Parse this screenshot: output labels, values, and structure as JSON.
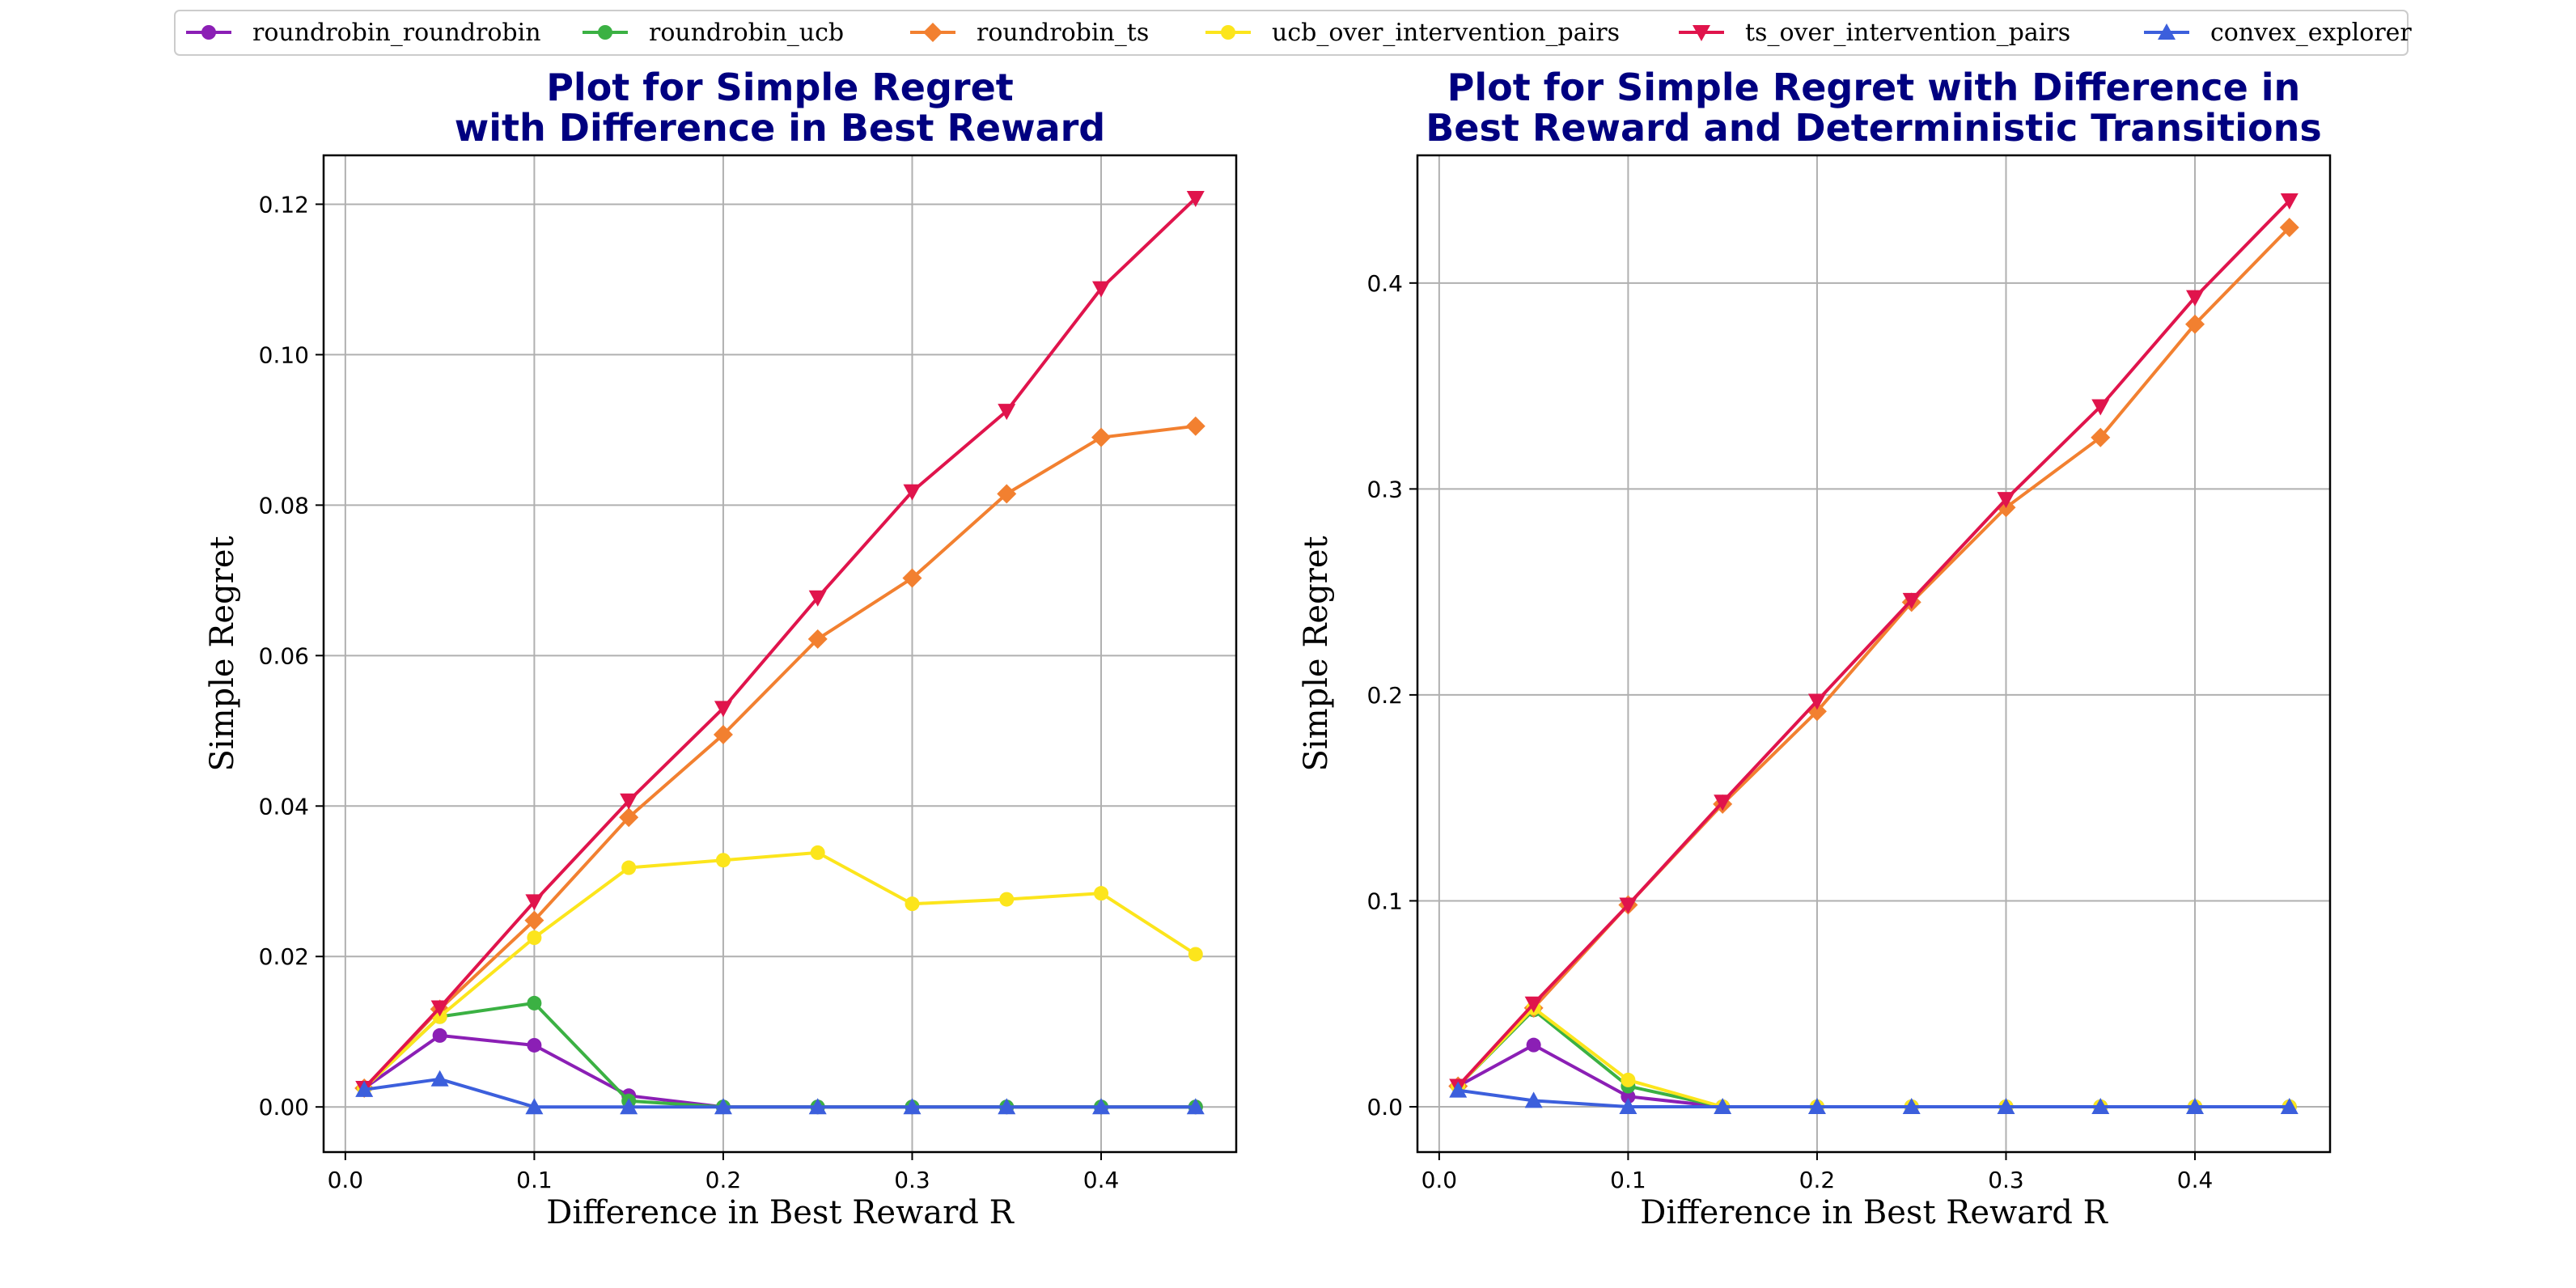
{
  "colors": {
    "title": "#000080",
    "grid": "#b0b0b0",
    "axis": "#000000"
  },
  "legend": {
    "placement": "top-center",
    "items": [
      {
        "name": "roundrobin_roundrobin",
        "color": "#8b1fb5",
        "marker": "circle"
      },
      {
        "name": "roundrobin_ucb",
        "color": "#3bb143",
        "marker": "circle"
      },
      {
        "name": "roundrobin_ts",
        "color": "#f28030",
        "marker": "diamond"
      },
      {
        "name": "ucb_over_intervention_pairs",
        "color": "#fce51c",
        "marker": "circle"
      },
      {
        "name": "ts_over_intervention_pairs",
        "color": "#e0144c",
        "marker": "triangle-down"
      },
      {
        "name": "convex_explorer",
        "color": "#3c5fdc",
        "marker": "triangle-up"
      }
    ]
  },
  "chart_data": [
    {
      "type": "line",
      "title_lines": [
        "Plot for Simple Regret",
        "with Difference in Best Reward"
      ],
      "xlabel": "Difference in Best Reward R",
      "ylabel": "Simple Regret",
      "xlim": [
        -0.0115,
        0.4715
      ],
      "ylim": [
        -0.006,
        0.1265
      ],
      "xticks": [
        0.0,
        0.1,
        0.2,
        0.3,
        0.4
      ],
      "xtick_labels": [
        "0.0",
        "0.1",
        "0.2",
        "0.3",
        "0.4"
      ],
      "yticks": [
        0.0,
        0.02,
        0.04,
        0.06,
        0.08,
        0.1,
        0.12
      ],
      "ytick_labels": [
        "0.00",
        "0.02",
        "0.04",
        "0.06",
        "0.08",
        "0.10",
        "0.12"
      ],
      "grid": true,
      "x": [
        0.01,
        0.05,
        0.1,
        0.15,
        0.2,
        0.25,
        0.3,
        0.35,
        0.4,
        0.45
      ],
      "series": [
        {
          "name": "roundrobin_roundrobin",
          "values": [
            0.0025,
            0.0095,
            0.0082,
            0.0015,
            0.0,
            0.0,
            0.0,
            0.0,
            0.0,
            0.0
          ]
        },
        {
          "name": "roundrobin_ucb",
          "values": [
            0.0025,
            0.012,
            0.0138,
            0.0008,
            0.0,
            0.0,
            0.0,
            0.0,
            0.0,
            0.0
          ]
        },
        {
          "name": "roundrobin_ts",
          "values": [
            0.0025,
            0.013,
            0.0248,
            0.0385,
            0.0495,
            0.0622,
            0.0703,
            0.0815,
            0.089,
            0.0905
          ]
        },
        {
          "name": "ucb_over_intervention_pairs",
          "values": [
            0.0025,
            0.012,
            0.0225,
            0.0318,
            0.0328,
            0.0338,
            0.027,
            0.0276,
            0.0284,
            0.0203
          ]
        },
        {
          "name": "ts_over_intervention_pairs",
          "values": [
            0.0025,
            0.0132,
            0.0273,
            0.0407,
            0.053,
            0.0677,
            0.0818,
            0.0925,
            0.1088,
            0.1208
          ]
        },
        {
          "name": "convex_explorer",
          "values": [
            0.0023,
            0.0037,
            0.0,
            0.0,
            0.0,
            0.0,
            0.0,
            0.0,
            0.0,
            0.0
          ]
        }
      ]
    },
    {
      "type": "line",
      "title_lines": [
        "Plot for Simple Regret with Difference in",
        "Best Reward and Deterministic Transitions"
      ],
      "xlabel": "Difference in Best Reward R",
      "ylabel": "Simple Regret",
      "xlim": [
        -0.0115,
        0.4715
      ],
      "ylim": [
        -0.022,
        0.462
      ],
      "xticks": [
        0.0,
        0.1,
        0.2,
        0.3,
        0.4
      ],
      "xtick_labels": [
        "0.0",
        "0.1",
        "0.2",
        "0.3",
        "0.4"
      ],
      "yticks": [
        0.0,
        0.1,
        0.2,
        0.3,
        0.4
      ],
      "ytick_labels": [
        "0.0",
        "0.1",
        "0.2",
        "0.3",
        "0.4"
      ],
      "grid": true,
      "x": [
        0.01,
        0.05,
        0.1,
        0.15,
        0.2,
        0.25,
        0.3,
        0.35,
        0.4,
        0.45
      ],
      "series": [
        {
          "name": "roundrobin_roundrobin",
          "values": [
            0.01,
            0.03,
            0.005,
            0.0,
            0.0,
            0.0,
            0.0,
            0.0,
            0.0,
            0.0
          ]
        },
        {
          "name": "roundrobin_ucb",
          "values": [
            0.01,
            0.047,
            0.01,
            0.0,
            0.0,
            0.0,
            0.0,
            0.0,
            0.0,
            0.0
          ]
        },
        {
          "name": "roundrobin_ts",
          "values": [
            0.01,
            0.048,
            0.098,
            0.147,
            0.192,
            0.245,
            0.291,
            0.325,
            0.38,
            0.427
          ]
        },
        {
          "name": "ucb_over_intervention_pairs",
          "values": [
            0.01,
            0.048,
            0.013,
            0.0,
            0.0,
            0.0,
            0.0,
            0.0,
            0.0,
            0.0
          ]
        },
        {
          "name": "ts_over_intervention_pairs",
          "values": [
            0.01,
            0.05,
            0.098,
            0.148,
            0.197,
            0.246,
            0.295,
            0.34,
            0.393,
            0.44
          ]
        },
        {
          "name": "convex_explorer",
          "values": [
            0.008,
            0.003,
            0.0,
            0.0,
            0.0,
            0.0,
            0.0,
            0.0,
            0.0,
            0.0
          ]
        }
      ]
    }
  ]
}
